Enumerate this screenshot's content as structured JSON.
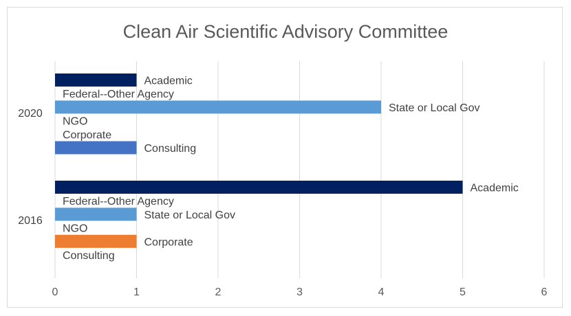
{
  "chart_data": {
    "type": "bar",
    "orientation": "horizontal",
    "title": "Clean Air Scientific Advisory Committee",
    "xlim": [
      0,
      6
    ],
    "x_ticks": [
      0,
      1,
      2,
      3,
      4,
      5,
      6
    ],
    "grid": true,
    "legend": "none",
    "categories": [
      "2020",
      "2016"
    ],
    "series": [
      {
        "name": "Academic",
        "color": "#002060",
        "values": {
          "2020": 1,
          "2016": 5
        }
      },
      {
        "name": "Federal--Other Agency",
        "color": "#1f4e79",
        "values": {
          "2020": 0,
          "2016": 0
        }
      },
      {
        "name": "State or Local Gov",
        "color": "#5b9bd5",
        "values": {
          "2020": 4,
          "2016": 1
        }
      },
      {
        "name": "NGO",
        "color": "#4472c4",
        "values": {
          "2020": 0,
          "2016": 0
        }
      },
      {
        "name": "Corporate",
        "color": "#ed7d31",
        "values": {
          "2020": 0,
          "2016": 1
        }
      },
      {
        "name": "Consulting",
        "color": "#4472c4",
        "values": {
          "2020": 1,
          "2016": 0
        }
      }
    ]
  }
}
